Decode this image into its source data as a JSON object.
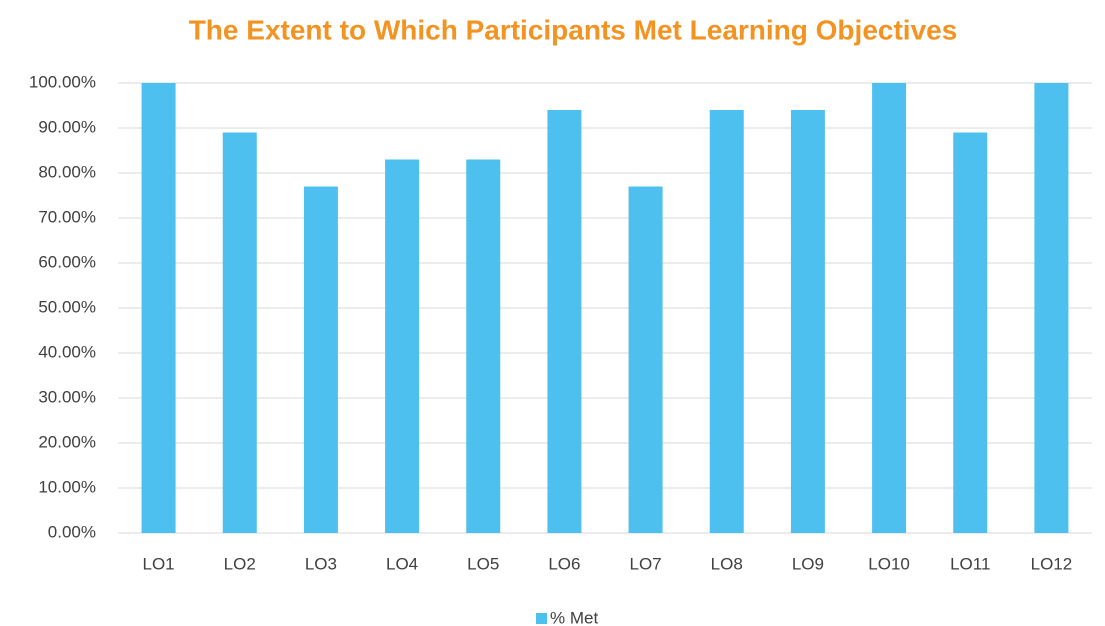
{
  "chart_data": {
    "type": "bar",
    "title": "The Extent to Which Participants Met Learning Objectives",
    "categories": [
      "LO1",
      "LO2",
      "LO3",
      "LO4",
      "LO5",
      "LO6",
      "LO7",
      "LO8",
      "LO9",
      "LO10",
      "LO11",
      "LO12"
    ],
    "series": [
      {
        "name": "% Met",
        "color": "#4dc0ef",
        "values": [
          100,
          89,
          77,
          83,
          83,
          94,
          77,
          94,
          94,
          100,
          89,
          100
        ]
      }
    ],
    "ylim": [
      0,
      100
    ],
    "yticks": [
      {
        "value": 0,
        "label": "0.00%"
      },
      {
        "value": 10,
        "label": "10.00%"
      },
      {
        "value": 20,
        "label": "20.00%"
      },
      {
        "value": 30,
        "label": "30.00%"
      },
      {
        "value": 40,
        "label": "40.00%"
      },
      {
        "value": 50,
        "label": "50.00%"
      },
      {
        "value": 60,
        "label": "60.00%"
      },
      {
        "value": 70,
        "label": "70.00%"
      },
      {
        "value": 80,
        "label": "80.00%"
      },
      {
        "value": 90,
        "label": "90.00%"
      },
      {
        "value": 100,
        "label": "100.00%"
      }
    ],
    "grid": true,
    "legend": "bottom"
  }
}
